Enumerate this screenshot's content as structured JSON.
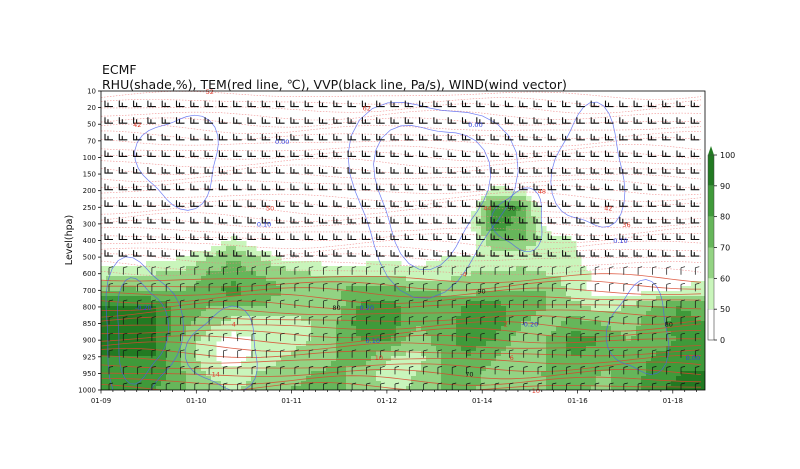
{
  "chart_data": {
    "type": "heatmap",
    "title": "ECMF",
    "subtitle": "RHU(shade,%), TEM(red line, ℃), VVP(black line, Pa/s), WIND(wind vector)",
    "ylabel": "Level(hpa)",
    "xlabel": "",
    "y_levels": [
      "10",
      "20",
      "50",
      "70",
      "100",
      "150",
      "200",
      "250",
      "300",
      "400",
      "500",
      "600",
      "700",
      "800",
      "850",
      "900",
      "925",
      "950",
      "1000"
    ],
    "y_axis": "inverted categorical, 10 at top, 1000 at bottom",
    "x_ticks": [
      "01-09",
      "01-10",
      "01-11",
      "01-12",
      "01-14",
      "01-16",
      "01-18"
    ],
    "colorbar": {
      "ticks": [
        "0",
        "50",
        "60",
        "70",
        "80",
        "90",
        "100"
      ],
      "levels": [
        0,
        50,
        60,
        70,
        80,
        90,
        100
      ],
      "colors": [
        "#ffffff",
        "#c9f5bb",
        "#93d383",
        "#66b65a",
        "#3f9a3a",
        "#227a22"
      ],
      "extend": "max"
    },
    "rhu_grid_note_columns": 24,
    "rhu_grid": [
      [
        30,
        30,
        30,
        30,
        30,
        30,
        30,
        30,
        30,
        30,
        30,
        30,
        30,
        30,
        30,
        30,
        30,
        30,
        30,
        30,
        30,
        30,
        30,
        30
      ],
      [
        30,
        30,
        30,
        30,
        30,
        30,
        30,
        30,
        30,
        30,
        30,
        30,
        30,
        30,
        30,
        30,
        30,
        30,
        30,
        30,
        30,
        30,
        30,
        30
      ],
      [
        30,
        30,
        30,
        30,
        30,
        30,
        30,
        30,
        30,
        30,
        30,
        30,
        30,
        30,
        30,
        30,
        30,
        30,
        30,
        30,
        30,
        30,
        30,
        30
      ],
      [
        30,
        30,
        30,
        30,
        30,
        30,
        30,
        30,
        30,
        30,
        30,
        30,
        30,
        30,
        30,
        30,
        30,
        30,
        30,
        30,
        30,
        30,
        30,
        30
      ],
      [
        30,
        30,
        30,
        30,
        30,
        30,
        30,
        30,
        30,
        30,
        30,
        30,
        30,
        30,
        30,
        30,
        30,
        30,
        30,
        30,
        30,
        30,
        30,
        30
      ],
      [
        30,
        30,
        30,
        30,
        30,
        30,
        30,
        30,
        30,
        30,
        30,
        30,
        30,
        30,
        30,
        30,
        30,
        30,
        30,
        30,
        30,
        30,
        30,
        30
      ],
      [
        30,
        30,
        30,
        30,
        30,
        30,
        30,
        30,
        30,
        30,
        30,
        30,
        30,
        30,
        30,
        55,
        50,
        30,
        30,
        30,
        30,
        30,
        30,
        30
      ],
      [
        30,
        30,
        30,
        30,
        30,
        30,
        30,
        30,
        30,
        30,
        30,
        30,
        30,
        30,
        40,
        85,
        80,
        35,
        30,
        30,
        30,
        30,
        30,
        30
      ],
      [
        30,
        30,
        30,
        30,
        30,
        30,
        30,
        30,
        30,
        30,
        30,
        30,
        30,
        30,
        45,
        88,
        75,
        45,
        30,
        30,
        30,
        30,
        30,
        30
      ],
      [
        52,
        35,
        35,
        35,
        38,
        55,
        40,
        35,
        35,
        35,
        35,
        35,
        35,
        35,
        40,
        70,
        72,
        55,
        52,
        35,
        35,
        35,
        35,
        35
      ],
      [
        42,
        42,
        45,
        50,
        60,
        70,
        60,
        48,
        45,
        42,
        45,
        48,
        45,
        50,
        50,
        52,
        50,
        55,
        52,
        40,
        40,
        40,
        40,
        40
      ],
      [
        55,
        58,
        60,
        62,
        70,
        75,
        70,
        65,
        60,
        58,
        58,
        55,
        55,
        55,
        60,
        62,
        65,
        60,
        58,
        45,
        45,
        45,
        45,
        48
      ],
      [
        70,
        72,
        70,
        70,
        75,
        85,
        75,
        70,
        68,
        70,
        75,
        75,
        70,
        70,
        65,
        70,
        70,
        70,
        55,
        45,
        45,
        48,
        50,
        55
      ],
      [
        92,
        92,
        90,
        75,
        70,
        70,
        70,
        65,
        65,
        65,
        85,
        85,
        75,
        70,
        85,
        85,
        75,
        70,
        65,
        55,
        60,
        70,
        80,
        75
      ],
      [
        92,
        92,
        92,
        75,
        65,
        55,
        55,
        55,
        60,
        70,
        88,
        88,
        70,
        75,
        85,
        85,
        70,
        65,
        75,
        70,
        65,
        75,
        85,
        80
      ],
      [
        92,
        92,
        92,
        70,
        55,
        45,
        52,
        55,
        60,
        70,
        80,
        80,
        65,
        75,
        85,
        80,
        65,
        70,
        85,
        80,
        70,
        75,
        80,
        80
      ],
      [
        90,
        90,
        90,
        70,
        55,
        40,
        55,
        60,
        65,
        70,
        75,
        60,
        55,
        70,
        80,
        70,
        60,
        70,
        80,
        75,
        70,
        80,
        85,
        85
      ],
      [
        88,
        88,
        88,
        72,
        60,
        55,
        60,
        65,
        70,
        72,
        65,
        55,
        60,
        70,
        75,
        65,
        60,
        72,
        78,
        70,
        70,
        85,
        90,
        90
      ],
      [
        88,
        88,
        80,
        72,
        65,
        58,
        65,
        70,
        72,
        72,
        65,
        58,
        62,
        70,
        72,
        65,
        62,
        70,
        75,
        68,
        72,
        88,
        92,
        92
      ]
    ],
    "temperature_labels": [
      {
        "text": "52",
        "t": 0.18,
        "level": "10"
      },
      {
        "text": "62",
        "t": 0.44,
        "level": "20"
      },
      {
        "text": "42",
        "t": 0.06,
        "level": "50"
      },
      {
        "text": "50",
        "t": 0.28,
        "level": "250"
      },
      {
        "text": "48",
        "t": 0.73,
        "level": "200"
      },
      {
        "text": "44",
        "t": 0.64,
        "level": "250"
      },
      {
        "text": "42",
        "t": 0.84,
        "level": "250"
      },
      {
        "text": "36",
        "t": 0.87,
        "level": "300"
      },
      {
        "text": "-4",
        "t": 0.6,
        "level": "600"
      },
      {
        "text": "2",
        "t": 0.67,
        "level": "850"
      },
      {
        "text": "4",
        "t": 0.22,
        "level": "850"
      },
      {
        "text": "6",
        "t": 0.68,
        "level": "925"
      },
      {
        "text": "10",
        "t": 0.46,
        "level": "925"
      },
      {
        "text": "10",
        "t": 0.72,
        "level": "1000"
      },
      {
        "text": "14",
        "t": 0.19,
        "level": "950"
      }
    ],
    "vvp_labels": [
      {
        "text": "0.00",
        "t": 0.3,
        "level": "70"
      },
      {
        "text": "0.00",
        "t": 0.62,
        "level": "50"
      },
      {
        "text": "0.10",
        "t": 0.27,
        "level": "250"
      },
      {
        "text": "0.10",
        "t": 0.86,
        "level": "300"
      },
      {
        "text": "-0.20",
        "t": 0.07,
        "level": "800"
      },
      {
        "text": "0.20",
        "t": 0.44,
        "level": "800"
      },
      {
        "text": "0.10",
        "t": 0.45,
        "level": "900"
      },
      {
        "text": "-0.20",
        "t": 0.71,
        "level": "850"
      },
      {
        "text": "0.00",
        "t": 0.98,
        "level": "925"
      }
    ],
    "rhu_labels": [
      {
        "text": "90",
        "t": 0.68,
        "level": "250"
      },
      {
        "text": "80",
        "t": 0.39,
        "level": "800"
      },
      {
        "text": "80",
        "t": 0.94,
        "level": "850"
      },
      {
        "text": "70",
        "t": 0.61,
        "level": "950"
      },
      {
        "text": "90",
        "t": 0.63,
        "level": "700"
      }
    ]
  }
}
